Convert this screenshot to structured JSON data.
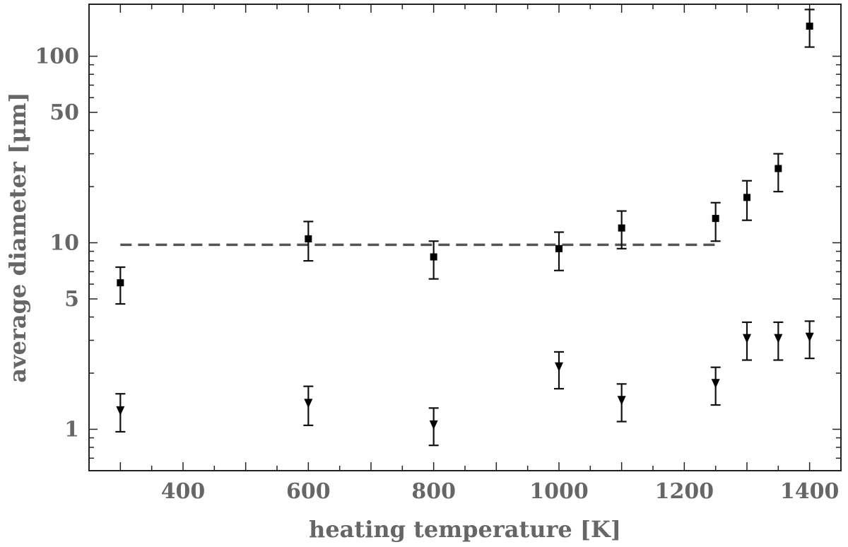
{
  "chart_data": {
    "type": "scatter",
    "title": "",
    "xlabel": "heating temperature [K]",
    "ylabel": "average diameter [μm]",
    "xlim": [
      250,
      1450
    ],
    "ylim": [
      0.6,
      190
    ],
    "yscale": "log",
    "x_ticks": [
      400,
      600,
      800,
      1000,
      1200,
      1400
    ],
    "y_ticks": [
      1,
      5,
      10,
      50,
      100
    ],
    "grid": false,
    "legend": "none",
    "series": [
      {
        "marker": "square",
        "color": "#000000",
        "x": [
          300,
          600,
          800,
          1000,
          1100,
          1250,
          1300,
          1350,
          1400
        ],
        "y": [
          6.1,
          10.5,
          8.4,
          9.3,
          12.0,
          13.5,
          17.5,
          25.0,
          145.0
        ],
        "y_lower": [
          4.7,
          8.0,
          6.4,
          7.1,
          9.3,
          10.2,
          13.2,
          18.8,
          112.0
        ],
        "y_upper": [
          7.4,
          13.0,
          10.2,
          11.4,
          14.8,
          16.4,
          21.5,
          30.0,
          178.0
        ]
      },
      {
        "marker": "triangle-down",
        "color": "#000000",
        "x": [
          300,
          600,
          800,
          1000,
          1100,
          1250,
          1300,
          1350,
          1400
        ],
        "y": [
          1.25,
          1.37,
          1.05,
          2.15,
          1.42,
          1.75,
          3.05,
          3.05,
          3.1
        ],
        "y_lower": [
          0.97,
          1.05,
          0.82,
          1.65,
          1.1,
          1.35,
          2.35,
          2.35,
          2.4
        ],
        "y_upper": [
          1.55,
          1.7,
          1.3,
          2.6,
          1.75,
          2.15,
          3.75,
          3.75,
          3.8
        ]
      }
    ],
    "reference_line": {
      "style": "dashed",
      "color": "#555555",
      "y": 9.75,
      "x_range": [
        300,
        1250
      ]
    }
  }
}
